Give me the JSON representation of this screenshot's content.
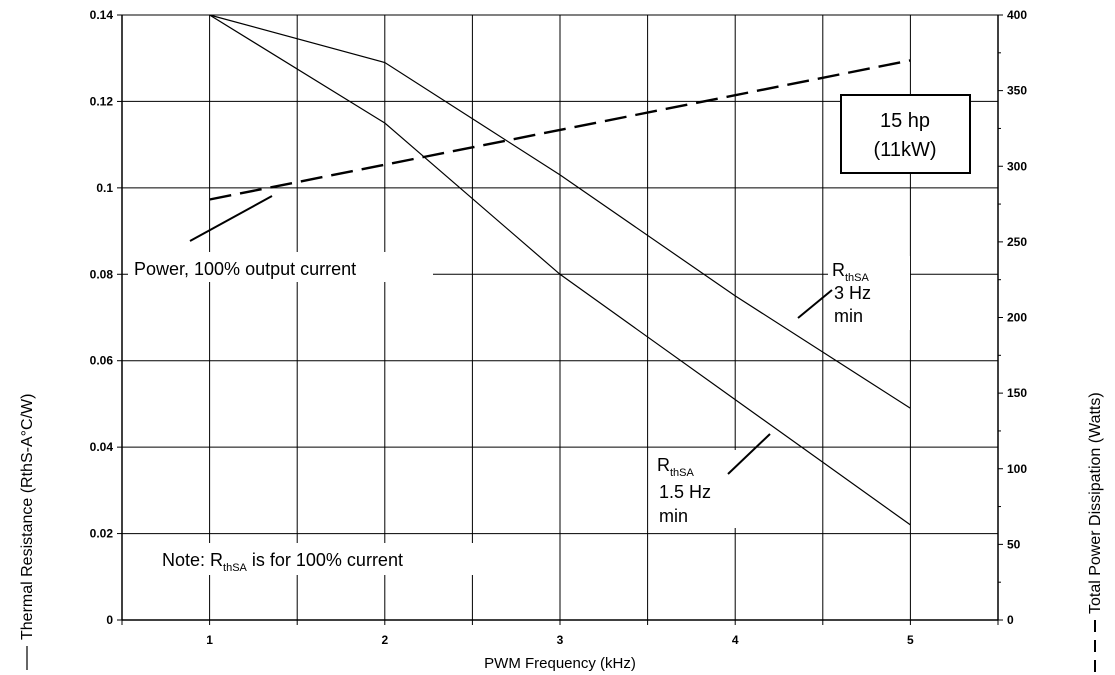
{
  "chart_data": {
    "type": "line",
    "xlabel": "PWM Frequency (kHz)",
    "ylabel_left": "Thermal Resistance (RthS-A°C/W)",
    "ylabel_right": "Total Power Dissipation (Watts)",
    "xlim": [
      0.5,
      5.5
    ],
    "ylim_left": [
      0,
      0.14
    ],
    "ylim_right": [
      0,
      400
    ],
    "x_ticks": [
      "1",
      "2",
      "3",
      "4",
      "5"
    ],
    "y_ticks_left": [
      "0",
      "0.02",
      "0.04",
      "0.06",
      "0.08",
      "0.1",
      "0.12",
      "0.14"
    ],
    "y_ticks_right": [
      "0",
      "50",
      "100",
      "150",
      "200",
      "250",
      "300",
      "350",
      "400"
    ],
    "grid": true,
    "series": [
      {
        "name": "RthSA 3 Hz min",
        "axis": "left",
        "style": "solid",
        "x": [
          1,
          2,
          3,
          4,
          5
        ],
        "y": [
          0.14,
          0.129,
          0.103,
          0.075,
          0.049
        ]
      },
      {
        "name": "RthSA 1.5 Hz min",
        "axis": "left",
        "style": "solid",
        "x": [
          1,
          2,
          3,
          4,
          5
        ],
        "y": [
          0.14,
          0.115,
          0.08,
          0.051,
          0.022
        ]
      },
      {
        "name": "Power, 100% output current",
        "axis": "right",
        "style": "dashed",
        "x": [
          1,
          5
        ],
        "y": [
          278,
          370
        ]
      }
    ],
    "annotations": {
      "power_label": "Power, 100% output current",
      "box_line1": "15 hp",
      "box_line2": "(11kW)",
      "r_main": "R",
      "r_sub": "thSA",
      "r3_line2": "3 Hz",
      "r3_line3": "min",
      "r15_line2": "1.5 Hz",
      "r15_line3": "min",
      "note_prefix": "Note: R",
      "note_sub": "thSA",
      "note_suffix": " is for 100% current"
    }
  }
}
